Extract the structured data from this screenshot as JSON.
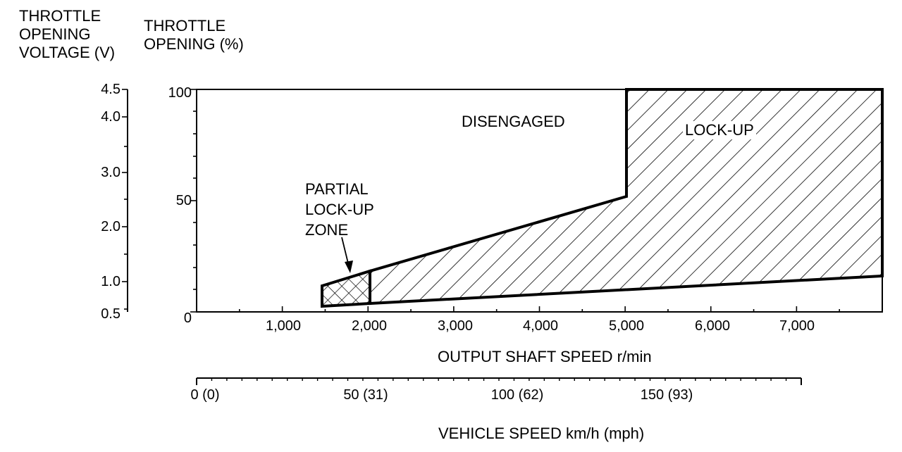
{
  "left_axis": {
    "title_lines": [
      "THROTTLE",
      "OPENING",
      "VOLTAGE (V)"
    ],
    "ticks": [
      {
        "value": 4.5,
        "label": "4.5"
      },
      {
        "value": 4.0,
        "label": "4.0"
      },
      {
        "value": 3.0,
        "label": "3.0"
      },
      {
        "value": 2.0,
        "label": "2.0"
      },
      {
        "value": 1.0,
        "label": "1.0"
      },
      {
        "value": 0.5,
        "label": "0.5"
      }
    ],
    "range": [
      0.5,
      4.5
    ]
  },
  "percent_axis": {
    "title_lines": [
      "THROTTLE",
      "OPENING (%)"
    ],
    "ticks": [
      {
        "value": 100,
        "label": "100"
      },
      {
        "value": 50,
        "label": "50"
      },
      {
        "value": 0,
        "label": "0"
      }
    ],
    "range": [
      0,
      100
    ]
  },
  "x_axis": {
    "title": "OUTPUT SHAFT SPEED r/min",
    "ticks": [
      {
        "value": 1000,
        "label": "1,000"
      },
      {
        "value": 2000,
        "label": "2,000"
      },
      {
        "value": 3000,
        "label": "3,000"
      },
      {
        "value": 4000,
        "label": "4,000"
      },
      {
        "value": 5000,
        "label": "5,000"
      },
      {
        "value": 6000,
        "label": "6,000"
      },
      {
        "value": 7000,
        "label": "7,000"
      }
    ],
    "range": [
      0,
      8000
    ]
  },
  "vehicle_axis": {
    "title": "VEHICLE SPEED km/h (mph)",
    "ticks": [
      {
        "label": "0 (0)"
      },
      {
        "label": "50 (31)"
      },
      {
        "label": "100 (62)"
      },
      {
        "label": "150 (93)"
      }
    ]
  },
  "zones": {
    "disengaged": "DISENGAGED",
    "lockup": "LOCK-UP",
    "partial_lines": [
      "PARTIAL",
      "LOCK-UP",
      "ZONE"
    ]
  }
}
